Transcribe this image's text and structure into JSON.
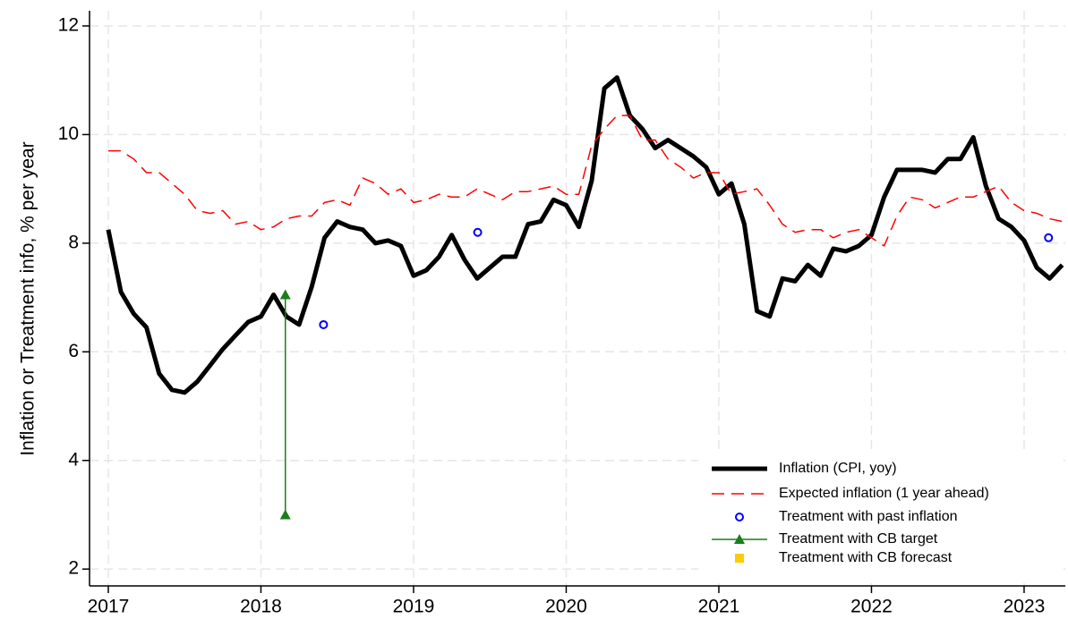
{
  "chart_data": {
    "type": "line",
    "y_label": "Inflation or Treatment info, % per year",
    "xlim": [
      2016.877,
      2023.27
    ],
    "xticks": [
      2017,
      2018,
      2019,
      2020,
      2021,
      2022,
      2023
    ],
    "ylim": [
      1.69,
      12.28
    ],
    "yticks": [
      2,
      4,
      6,
      8,
      10,
      12
    ],
    "grid": true,
    "legend": "lower right",
    "series": [
      {
        "name": "Inflation (CPI, yoy)",
        "color": "#000000",
        "line_style": "solid",
        "line_width": 5,
        "x": [
          2017.0,
          2017.083,
          2017.167,
          2017.25,
          2017.333,
          2017.417,
          2017.5,
          2017.583,
          2017.667,
          2017.75,
          2017.833,
          2017.917,
          2018.0,
          2018.083,
          2018.167,
          2018.25,
          2018.333,
          2018.417,
          2018.5,
          2018.583,
          2018.667,
          2018.75,
          2018.833,
          2018.917,
          2019.0,
          2019.083,
          2019.167,
          2019.25,
          2019.333,
          2019.417,
          2019.5,
          2019.583,
          2019.667,
          2019.75,
          2019.833,
          2019.917,
          2020.0,
          2020.083,
          2020.167,
          2020.25,
          2020.333,
          2020.417,
          2020.5,
          2020.583,
          2020.667,
          2020.75,
          2020.833,
          2020.917,
          2021.0,
          2021.083,
          2021.167,
          2021.25,
          2021.333,
          2021.417,
          2021.5,
          2021.583,
          2021.667,
          2021.75,
          2021.833,
          2021.917,
          2022.0,
          2022.083,
          2022.167,
          2022.25,
          2022.333,
          2022.417,
          2022.5,
          2022.583,
          2022.667,
          2022.75,
          2022.833,
          2022.917,
          2023.0,
          2023.083,
          2023.167,
          2023.25
        ],
        "values": [
          8.25,
          7.1,
          6.7,
          6.45,
          5.6,
          5.3,
          5.25,
          5.45,
          5.75,
          6.05,
          6.3,
          6.55,
          6.65,
          7.05,
          6.65,
          6.5,
          7.2,
          8.1,
          8.4,
          8.3,
          8.25,
          8.0,
          8.05,
          7.95,
          7.4,
          7.5,
          7.75,
          8.15,
          7.7,
          7.35,
          7.55,
          7.75,
          7.75,
          8.35,
          8.4,
          8.8,
          8.7,
          8.3,
          9.15,
          10.85,
          11.05,
          10.35,
          10.1,
          9.75,
          9.9,
          9.75,
          9.6,
          9.4,
          8.9,
          9.1,
          8.35,
          6.75,
          6.65,
          7.35,
          7.3,
          7.6,
          7.4,
          7.9,
          7.85,
          7.95,
          8.15,
          8.85,
          9.35,
          9.35,
          9.35,
          9.3,
          9.55,
          9.55,
          9.95,
          9.05,
          8.45,
          8.3,
          8.05,
          7.55,
          7.35,
          7.6
        ]
      },
      {
        "name": "Expected inflation (1 year ahead)",
        "color": "#ff0000",
        "line_style": "dashed",
        "line_width": 1.5,
        "x": [
          2017.0,
          2017.083,
          2017.167,
          2017.25,
          2017.333,
          2017.417,
          2017.5,
          2017.583,
          2017.667,
          2017.75,
          2017.833,
          2017.917,
          2018.0,
          2018.083,
          2018.167,
          2018.25,
          2018.333,
          2018.417,
          2018.5,
          2018.583,
          2018.667,
          2018.75,
          2018.833,
          2018.917,
          2019.0,
          2019.083,
          2019.167,
          2019.25,
          2019.333,
          2019.417,
          2019.5,
          2019.583,
          2019.667,
          2019.75,
          2019.833,
          2019.917,
          2020.0,
          2020.083,
          2020.167,
          2020.25,
          2020.333,
          2020.417,
          2020.5,
          2020.583,
          2020.667,
          2020.75,
          2020.833,
          2020.917,
          2021.0,
          2021.083,
          2021.167,
          2021.25,
          2021.333,
          2021.417,
          2021.5,
          2021.583,
          2021.667,
          2021.75,
          2021.833,
          2021.917,
          2022.0,
          2022.083,
          2022.167,
          2022.25,
          2022.333,
          2022.417,
          2022.5,
          2022.583,
          2022.667,
          2022.75,
          2022.833,
          2022.917,
          2023.0,
          2023.083,
          2023.167,
          2023.25
        ],
        "values": [
          9.7,
          9.7,
          9.55,
          9.3,
          9.3,
          9.1,
          8.9,
          8.6,
          8.55,
          8.6,
          8.35,
          8.4,
          8.25,
          8.3,
          8.45,
          8.5,
          8.5,
          8.75,
          8.8,
          8.7,
          9.2,
          9.1,
          8.9,
          9.0,
          8.75,
          8.8,
          8.9,
          8.85,
          8.85,
          9.0,
          8.9,
          8.8,
          8.95,
          8.95,
          9.0,
          9.05,
          8.9,
          8.9,
          9.8,
          10.1,
          10.35,
          10.35,
          9.9,
          9.9,
          9.55,
          9.4,
          9.2,
          9.3,
          9.3,
          8.9,
          8.95,
          9.0,
          8.7,
          8.35,
          8.2,
          8.25,
          8.25,
          8.1,
          8.2,
          8.25,
          8.1,
          7.95,
          8.5,
          8.85,
          8.8,
          8.65,
          8.75,
          8.85,
          8.85,
          8.95,
          9.05,
          8.75,
          8.6,
          8.55,
          8.45,
          8.4
        ]
      },
      {
        "name": "Treatment with past inflation",
        "color": "#0000ff",
        "marker": "circle",
        "x": [
          2018.41,
          2019.42,
          2023.16
        ],
        "values": [
          6.5,
          8.2,
          8.1
        ]
      },
      {
        "name": "Treatment with CB target",
        "color": "#1a7f1a",
        "marker": "triangle",
        "line_style": "solid",
        "line_width": 1.5,
        "x": [
          2018.16,
          2018.16
        ],
        "values": [
          3.0,
          7.05
        ]
      },
      {
        "name": "Treatment with CB forecast",
        "color": "#ffcc00",
        "marker": "square",
        "x": [],
        "values": []
      }
    ]
  }
}
